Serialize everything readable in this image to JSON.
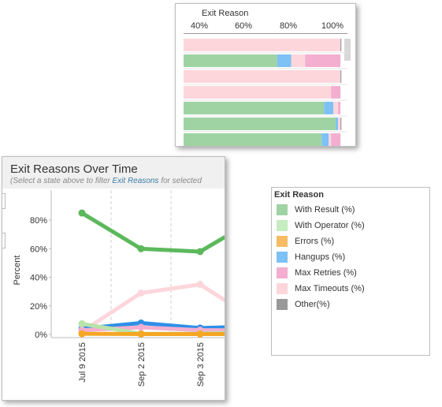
{
  "bar_panel": {
    "axis_title": "Exit Reason",
    "ticks": [
      "40%",
      "60%",
      "80%",
      "100%"
    ]
  },
  "line_panel": {
    "title": "Exit Reasons Over Time",
    "subtitle_prefix": "(Select a state above to filter ",
    "subtitle_link": "Exit Reasons",
    "subtitle_suffix": " for selected"
  },
  "legend": {
    "title": "Exit Reason",
    "items": [
      {
        "label": "With Result (%)",
        "color": "#9fd3a3"
      },
      {
        "label": "With Operator (%)",
        "color": "#c6ecc0"
      },
      {
        "label": "Errors (%)",
        "color": "#f5bc63"
      },
      {
        "label": "Hangups (%)",
        "color": "#7dc1f5"
      },
      {
        "label": "Max Retries (%)",
        "color": "#f3aed0"
      },
      {
        "label": "Max Timeouts (%)",
        "color": "#fdd6dc"
      },
      {
        "label": "Other(%)",
        "color": "#999999"
      }
    ]
  },
  "chart_data": [
    {
      "type": "bar",
      "orientation": "horizontal-stacked",
      "xlabel": "Exit Reason",
      "xticks": [
        "40%",
        "60%",
        "80%",
        "100%"
      ],
      "xlim": [
        33,
        103
      ],
      "rows": [
        [
          {
            "name": "With Result (%)",
            "start": 33,
            "end": 33
          },
          {
            "name": "Max Timeouts (%)",
            "start": 33,
            "end": 100
          },
          {
            "name": "Other(%)",
            "start": 100,
            "end": 100.4
          }
        ],
        [
          {
            "name": "With Result (%)",
            "start": 33,
            "end": 73
          },
          {
            "name": "Hangups (%)",
            "start": 73,
            "end": 79
          },
          {
            "name": "Max Timeouts (%)",
            "start": 79,
            "end": 85
          },
          {
            "name": "Max Retries (%)",
            "start": 85,
            "end": 100
          }
        ],
        [
          {
            "name": "Max Timeouts (%)",
            "start": 33,
            "end": 100
          },
          {
            "name": "Other(%)",
            "start": 100,
            "end": 100.4
          }
        ],
        [
          {
            "name": "Max Timeouts (%)",
            "start": 33,
            "end": 96
          },
          {
            "name": "Max Retries (%)",
            "start": 96,
            "end": 100
          }
        ],
        [
          {
            "name": "With Result (%)",
            "start": 33,
            "end": 93
          },
          {
            "name": "Hangups (%)",
            "start": 93,
            "end": 97
          },
          {
            "name": "Max Timeouts (%)",
            "start": 97,
            "end": 99
          },
          {
            "name": "Max Retries (%)",
            "start": 99,
            "end": 100
          }
        ],
        [
          {
            "name": "With Result (%)",
            "start": 33,
            "end": 98
          },
          {
            "name": "Hangups (%)",
            "start": 98,
            "end": 99
          },
          {
            "name": "Max Timeouts (%)",
            "start": 99,
            "end": 100
          },
          {
            "name": "Other(%)",
            "start": 100,
            "end": 100.4
          }
        ],
        [
          {
            "name": "With Result (%)",
            "start": 33,
            "end": 92
          },
          {
            "name": "Hangups (%)",
            "start": 92,
            "end": 95
          },
          {
            "name": "Max Timeouts (%)",
            "start": 95,
            "end": 96
          },
          {
            "name": "Max Retries (%)",
            "start": 96,
            "end": 100
          }
        ]
      ]
    },
    {
      "type": "line",
      "title": "Exit Reasons Over Time",
      "ylabel": "Percent",
      "ylim": [
        0,
        90
      ],
      "yticks": [
        "0%",
        "20%",
        "40%",
        "60%",
        "80%"
      ],
      "x": [
        "Jul 9 2015",
        "Sep 2 2015",
        "Sep 3 2015"
      ],
      "series": [
        {
          "name": "With Result (%)",
          "color": "#5cb85c",
          "values": [
            85,
            60,
            58
          ],
          "continues_to": 68
        },
        {
          "name": "Max Timeouts (%)",
          "color": "#fdd6dc",
          "values": [
            2,
            29,
            35
          ],
          "continues_to": 24
        },
        {
          "name": "Hangups (%)",
          "color": "#2f8fe8",
          "values": [
            4,
            8,
            4.5
          ],
          "continues_to": 5
        },
        {
          "name": "Max Retries (%)",
          "color": "#f3aed0",
          "values": [
            3,
            5,
            3
          ],
          "continues_to": 3
        },
        {
          "name": "With Operator (%)",
          "color": "#b9e3a8",
          "values": [
            7.5,
            0.5,
            0.5
          ],
          "continues_to": 1
        },
        {
          "name": "Errors (%)",
          "color": "#f5a623",
          "values": [
            0.5,
            0.3,
            0.3
          ],
          "continues_to": 0.3
        }
      ]
    }
  ]
}
